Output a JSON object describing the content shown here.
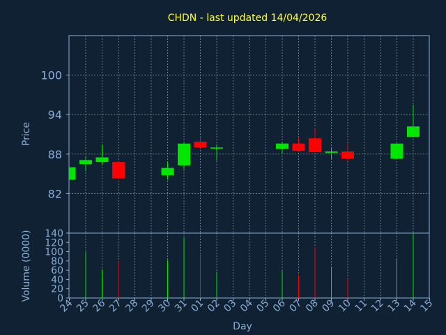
{
  "chart_data": {
    "title": "CHDN - last updated 14/04/2026",
    "price_panel": {
      "type": "candlestick",
      "ylabel": "Price",
      "yticks": [
        82,
        88,
        94,
        100
      ],
      "ylim": [
        76,
        106
      ]
    },
    "volume_panel": {
      "type": "bar",
      "ylabel": "Volume (0000)",
      "yticks": [
        0,
        20,
        40,
        60,
        80,
        100,
        120,
        140
      ],
      "ylim": [
        0,
        140
      ]
    },
    "xlabel": "Day",
    "x_ticks": [
      "24",
      "25",
      "26",
      "27",
      "28",
      "29",
      "30",
      "31",
      "01",
      "02",
      "03",
      "04",
      "05",
      "06",
      "07",
      "08",
      "09",
      "10",
      "11",
      "12",
      "13",
      "14",
      "15"
    ],
    "candles": [
      {
        "day": "24",
        "open": 84.1,
        "high": 86.0,
        "low": 84.1,
        "close": 86.0,
        "volume": 0
      },
      {
        "day": "25",
        "open": 86.5,
        "high": 87.6,
        "low": 85.4,
        "close": 87.1,
        "volume": 100
      },
      {
        "day": "26",
        "open": 86.8,
        "high": 89.5,
        "low": 86.5,
        "close": 87.5,
        "volume": 62
      },
      {
        "day": "27",
        "open": 86.8,
        "high": 86.8,
        "low": 84.2,
        "close": 84.3,
        "volume": 80
      },
      {
        "day": "30",
        "open": 84.8,
        "high": 86.8,
        "low": 84.1,
        "close": 85.9,
        "volume": 82
      },
      {
        "day": "31",
        "open": 86.3,
        "high": 89.8,
        "low": 85.7,
        "close": 89.6,
        "volume": 130
      },
      {
        "day": "01",
        "open": 89.9,
        "high": 90.7,
        "low": 88.9,
        "close": 89.0,
        "volume": 97
      },
      {
        "day": "02",
        "open": 89.0,
        "high": 89.5,
        "low": 87.0,
        "close": 89.0,
        "volume": 57
      },
      {
        "day": "06",
        "open": 88.8,
        "high": 89.9,
        "low": 88.0,
        "close": 89.6,
        "volume": 60
      },
      {
        "day": "07",
        "open": 89.6,
        "high": 90.5,
        "low": 88.4,
        "close": 88.5,
        "volume": 50
      },
      {
        "day": "08",
        "open": 90.4,
        "high": 91.9,
        "low": 88.3,
        "close": 88.3,
        "volume": 110
      },
      {
        "day": "09",
        "open": 88.2,
        "high": 89.0,
        "low": 87.3,
        "close": 88.4,
        "volume": 68
      },
      {
        "day": "10",
        "open": 88.4,
        "high": 89.6,
        "low": 86.9,
        "close": 87.3,
        "volume": 42
      },
      {
        "day": "13",
        "open": 87.3,
        "high": 89.6,
        "low": 87.3,
        "close": 89.6,
        "volume": 85
      },
      {
        "day": "14",
        "open": 90.6,
        "high": 95.5,
        "low": 90.6,
        "close": 92.2,
        "volume": 140
      }
    ],
    "colors": {
      "background": "#0f2132",
      "up": "#00e600",
      "down": "#ff0000",
      "axis": "#8aaed6",
      "title": "#ffff33",
      "grid": "#c0c8d0"
    },
    "grid": true
  }
}
